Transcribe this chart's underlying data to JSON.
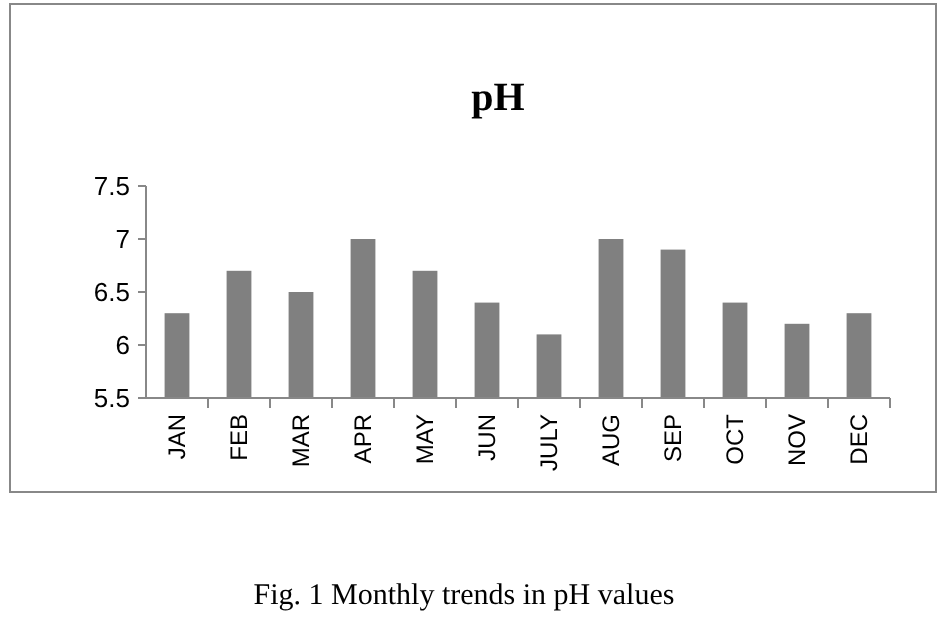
{
  "chart_data": {
    "type": "bar",
    "title": "pH",
    "categories": [
      "JAN",
      "FEB",
      "MAR",
      "APR",
      "MAY",
      "JUN",
      "JULY",
      "AUG",
      "SEP",
      "OCT",
      "NOV",
      "DEC"
    ],
    "values": [
      6.3,
      6.7,
      6.5,
      7,
      6.7,
      6.4,
      6.1,
      7,
      6.9,
      6.4,
      6.2,
      6.3
    ],
    "color": "#808080",
    "ylim": [
      5.5,
      7.5
    ],
    "yticks": [
      5.5,
      6,
      6.5,
      7,
      7.5
    ],
    "grid": false,
    "annotations": [
      "Fig. 1 Monthly trends in pH values"
    ]
  }
}
